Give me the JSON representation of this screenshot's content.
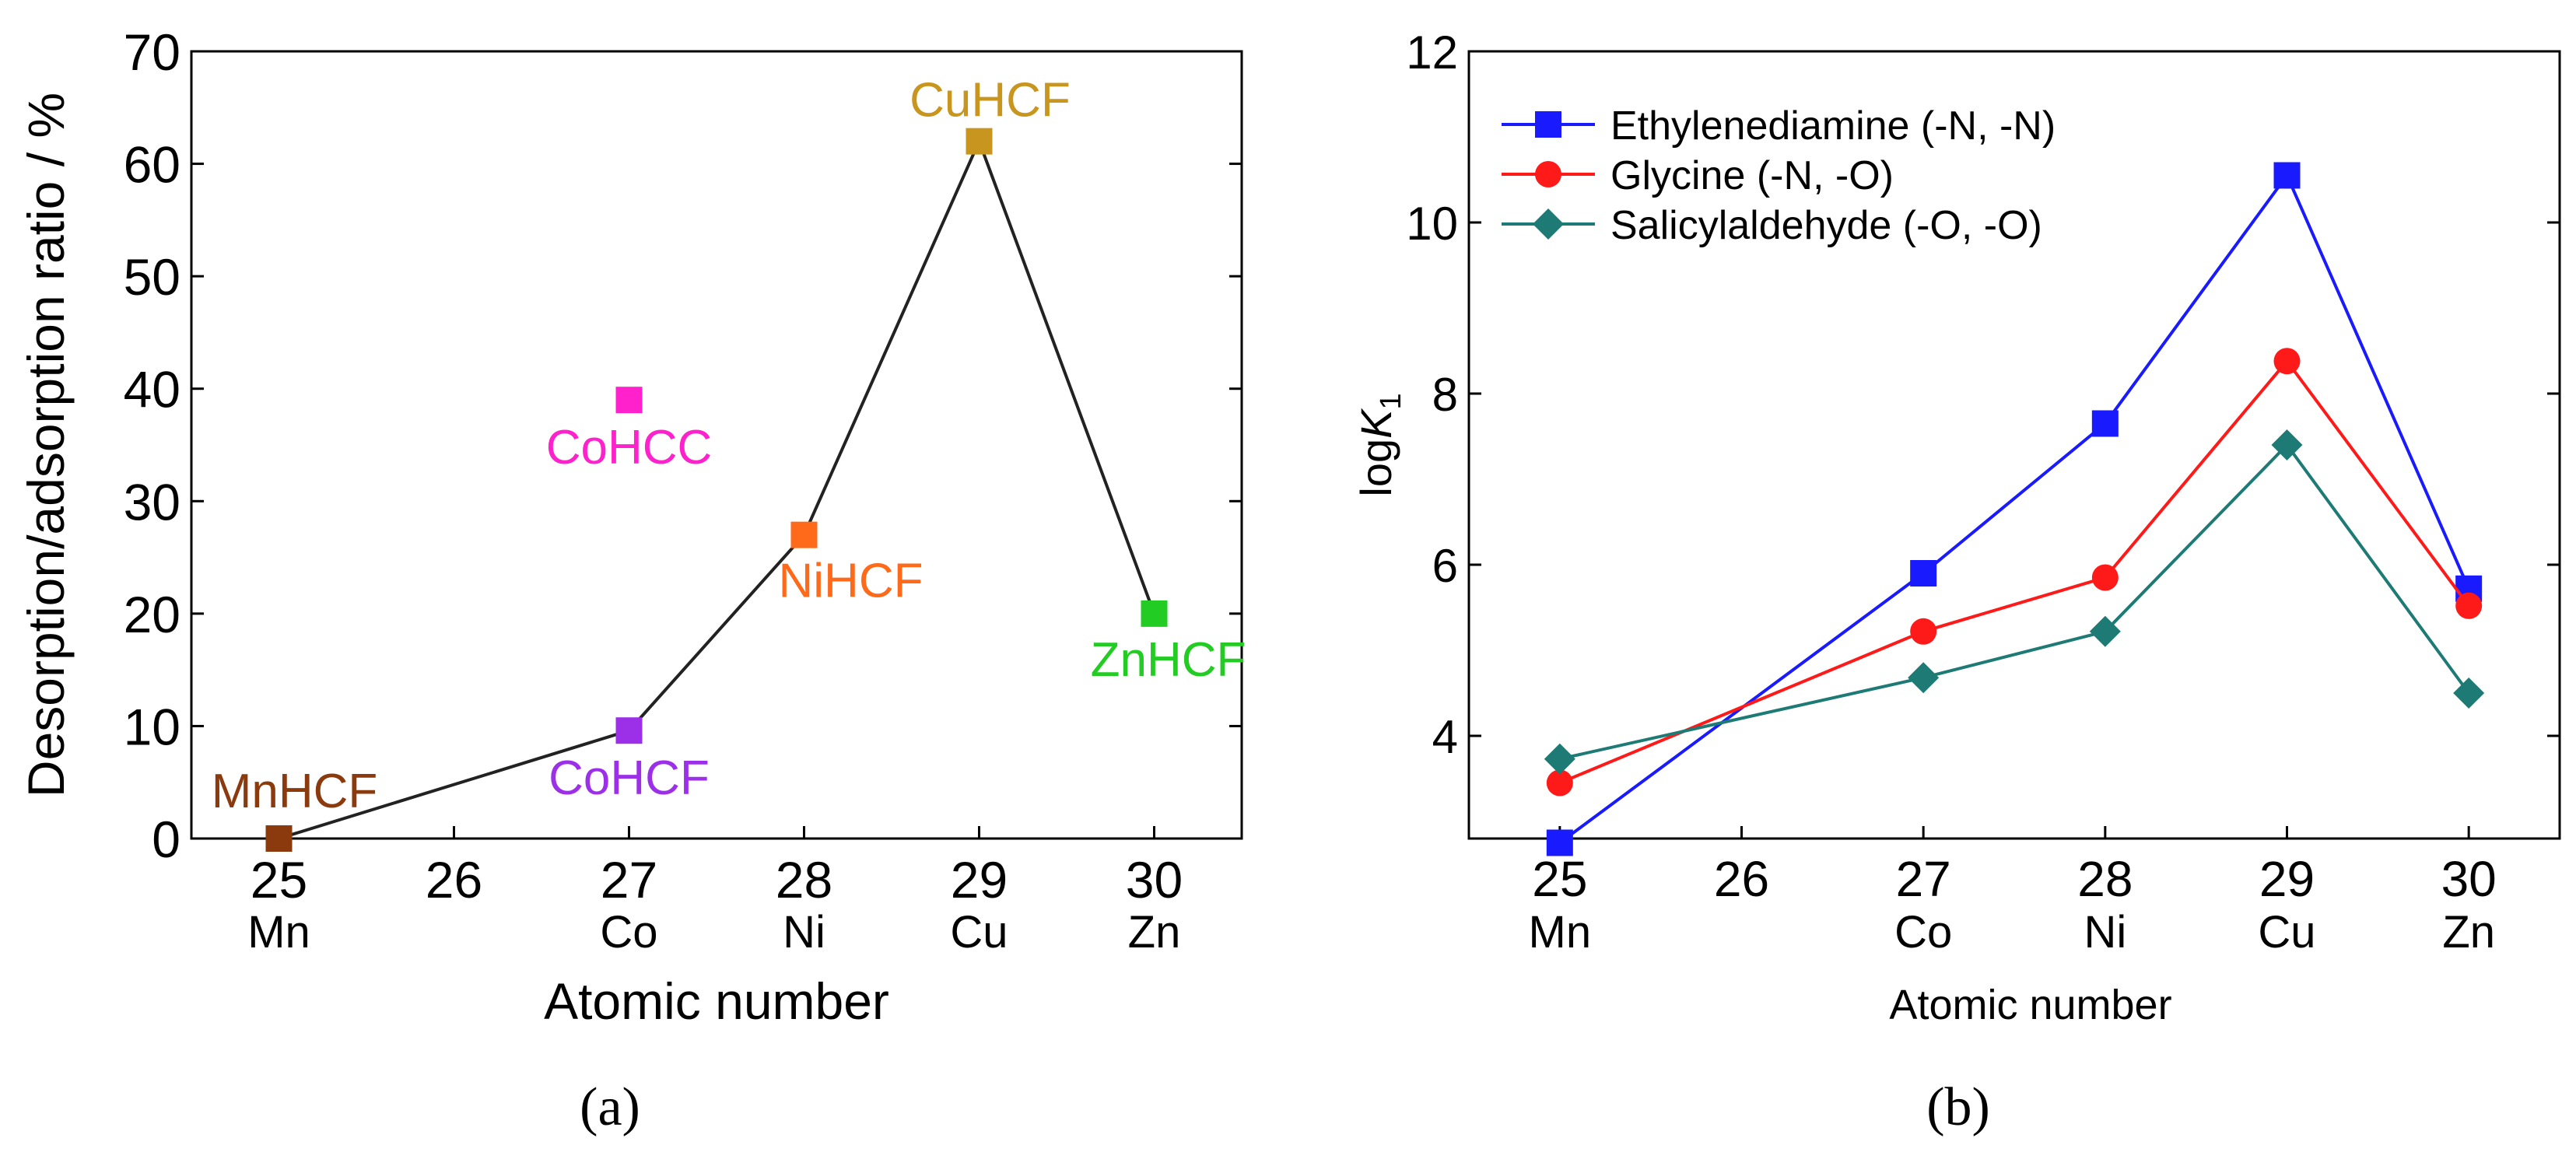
{
  "chart_data": [
    {
      "type": "scatter",
      "panel_label": "(a)",
      "xlabel": "Atomic number",
      "ylabel": "Desorption/adsorption ratio / %",
      "xlim": [
        24.5,
        30.5
      ],
      "ylim": [
        0,
        70
      ],
      "xticks": [
        {
          "value": 25,
          "number": "25",
          "element": "Mn"
        },
        {
          "value": 26,
          "number": "26",
          "element": ""
        },
        {
          "value": 27,
          "number": "27",
          "element": "Co"
        },
        {
          "value": 28,
          "number": "28",
          "element": "Ni"
        },
        {
          "value": 29,
          "number": "29",
          "element": "Cu"
        },
        {
          "value": 30,
          "number": "30",
          "element": "Zn"
        }
      ],
      "yticks": [
        0,
        10,
        20,
        30,
        40,
        50,
        60,
        70
      ],
      "points": [
        {
          "name": "MnHCF",
          "x": 25,
          "y": 0,
          "color": "#8B3A0E"
        },
        {
          "name": "CoHCF",
          "x": 27,
          "y": 9.6,
          "color": "#9B30E8"
        },
        {
          "name": "CoHCC",
          "x": 27,
          "y": 39,
          "color": "#FF22CC"
        },
        {
          "name": "NiHCF",
          "x": 28,
          "y": 27,
          "color": "#FF6A1A"
        },
        {
          "name": "CuHCF",
          "x": 29,
          "y": 62,
          "color": "#C8961E"
        },
        {
          "name": "ZnHCF",
          "x": 30,
          "y": 20,
          "color": "#22CC22"
        }
      ],
      "line": {
        "points": [
          "MnHCF",
          "CoHCF",
          "NiHCF",
          "CuHCF",
          "ZnHCF"
        ],
        "color": "#222222"
      }
    },
    {
      "type": "line",
      "panel_label": "(b)",
      "xlabel": "Atomic number",
      "ylabel": "logK",
      "ylabel_prefix": "log",
      "ylabel_italic": "K",
      "ylabel_sub": "1",
      "xlim": [
        24.5,
        30.5
      ],
      "ylim": [
        2.8,
        12
      ],
      "xticks": [
        {
          "value": 25,
          "number": "25",
          "element": "Mn"
        },
        {
          "value": 26,
          "number": "26",
          "element": ""
        },
        {
          "value": 27,
          "number": "27",
          "element": "Co"
        },
        {
          "value": 28,
          "number": "28",
          "element": "Ni"
        },
        {
          "value": 29,
          "number": "29",
          "element": "Cu"
        },
        {
          "value": 30,
          "number": "30",
          "element": "Zn"
        }
      ],
      "yticks": [
        4,
        6,
        8,
        10,
        12
      ],
      "legend_position": "top-left",
      "series": [
        {
          "name": "Ethylenediamine (-N, -N)",
          "color": "#1A1AFF",
          "marker": "square",
          "x": [
            25,
            27,
            28,
            29,
            30
          ],
          "y": [
            2.75,
            5.9,
            7.65,
            10.55,
            5.72
          ]
        },
        {
          "name": "Glycine (-N, -O)",
          "color": "#FF1A1A",
          "marker": "circle",
          "x": [
            25,
            27,
            28,
            29,
            30
          ],
          "y": [
            3.45,
            5.22,
            5.85,
            8.38,
            5.52
          ]
        },
        {
          "name": "Salicylaldehyde (-O, -O)",
          "color": "#1E7A74",
          "marker": "diamond",
          "x": [
            25,
            27,
            28,
            29,
            30
          ],
          "y": [
            3.73,
            4.68,
            5.22,
            7.4,
            4.5
          ]
        }
      ]
    }
  ]
}
